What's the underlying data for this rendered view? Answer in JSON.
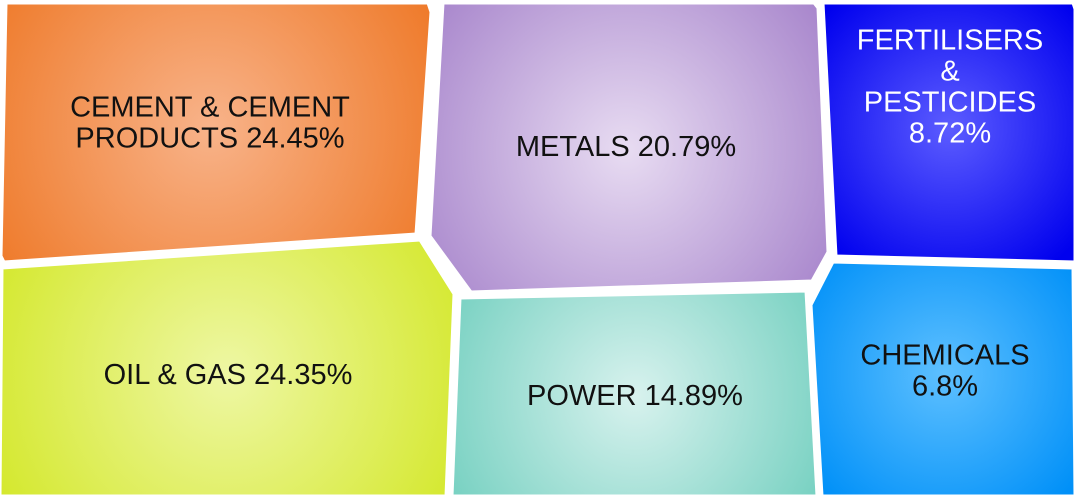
{
  "chart_data": {
    "type": "voronoi-treemap",
    "title": "",
    "cells": [
      {
        "key": "cement",
        "label_lines": [
          "CEMENT & CEMENT",
          "PRODUCTS 24.45%"
        ],
        "name": "CEMENT & CEMENT PRODUCTS",
        "value": 24.45,
        "color": "#ee7623",
        "highlight": "#f8b38a"
      },
      {
        "key": "metals",
        "label_lines": [
          "METALS 20.79%"
        ],
        "name": "METALS",
        "value": 20.79,
        "color": "#a886cc",
        "highlight": "#e8dcf2"
      },
      {
        "key": "fertilisers",
        "label_lines": [
          "FERTILISERS",
          "&",
          "PESTICIDES",
          "8.72%"
        ],
        "name": "FERTILISERS & PESTICIDES",
        "value": 8.72,
        "color": "#0000ee",
        "highlight": "#5c5cff",
        "text_color": "#ffffff"
      },
      {
        "key": "oilgas",
        "label_lines": [
          "OIL & GAS 24.35%"
        ],
        "name": "OIL & GAS",
        "value": 24.35,
        "color": "#d4e82c",
        "highlight": "#eef7a4"
      },
      {
        "key": "power",
        "label_lines": [
          "POWER 14.89%"
        ],
        "name": "POWER",
        "value": 14.89,
        "color": "#72cfbf",
        "highlight": "#d8f2ee"
      },
      {
        "key": "chemicals",
        "label_lines": [
          "CHEMICALS",
          "6.8%"
        ],
        "name": "CHEMICALS",
        "value": 6.8,
        "color": "#0090f8",
        "highlight": "#5ec0ff"
      }
    ]
  }
}
